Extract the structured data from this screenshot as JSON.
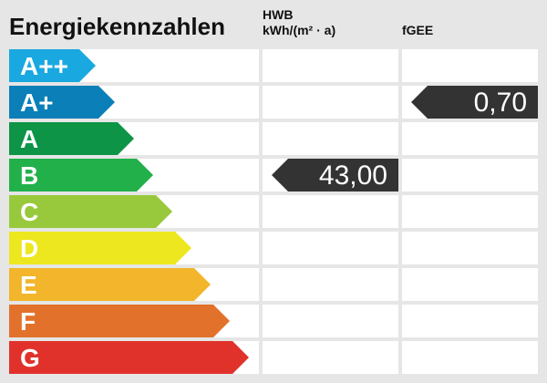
{
  "title": "Energiekennzahlen",
  "headers": {
    "hwb_line1": "HWB",
    "hwb_line2": "kWh/(m² · a)",
    "fgee": "fGEE"
  },
  "chart_data": {
    "type": "table",
    "classes": [
      {
        "label": "A++",
        "color": "#1aa8e0"
      },
      {
        "label": "A+",
        "color": "#0a7fb8"
      },
      {
        "label": "A",
        "color": "#0d9447"
      },
      {
        "label": "B",
        "color": "#22b04b"
      },
      {
        "label": "C",
        "color": "#98c93c"
      },
      {
        "label": "D",
        "color": "#ede71f"
      },
      {
        "label": "E",
        "color": "#f2b52b"
      },
      {
        "label": "F",
        "color": "#e2722b"
      },
      {
        "label": "G",
        "color": "#e0322b"
      }
    ],
    "hwb": {
      "value": "43,00",
      "class": "B"
    },
    "fgee": {
      "value": "0,70",
      "class": "A+"
    },
    "marker_color": "#333333"
  }
}
